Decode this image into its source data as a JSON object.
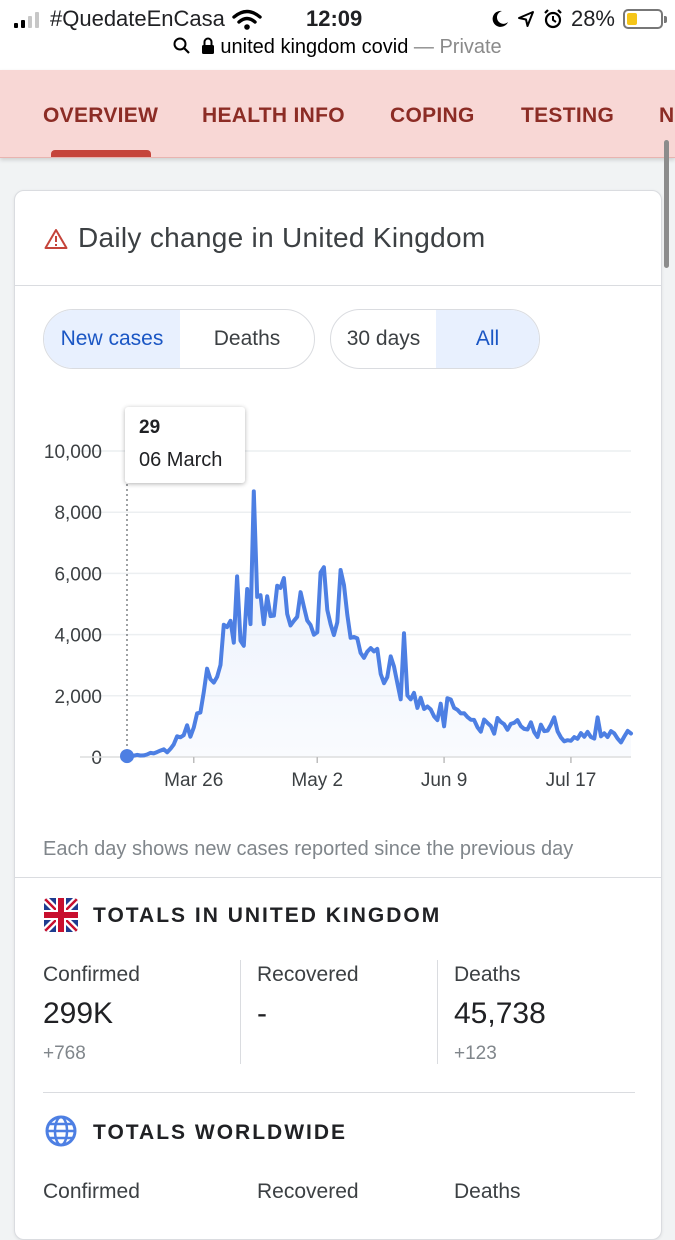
{
  "status_bar": {
    "carrier": "#QuedateEnCasa",
    "time": "12:09",
    "battery": "28%",
    "icons": [
      "signal-icon",
      "wifi-icon",
      "moon-icon",
      "location-icon",
      "alarm-icon",
      "battery-icon"
    ]
  },
  "url_bar": {
    "query": "united kingdom covid",
    "separator": "—",
    "mode": "Private"
  },
  "tabs": [
    {
      "label": "OVERVIEW",
      "active": true
    },
    {
      "label": "HEALTH INFO"
    },
    {
      "label": "COPING"
    },
    {
      "label": "TESTING"
    },
    {
      "label": "N"
    }
  ],
  "card": {
    "title": "Daily change in United Kingdom",
    "metric_toggle": {
      "options": [
        "New cases",
        "Deaths"
      ],
      "selected": "New cases"
    },
    "range_toggle": {
      "options": [
        "30 days",
        "All"
      ],
      "selected": "All"
    },
    "tooltip": {
      "value": "29",
      "date": "06 March"
    },
    "caption": "Each day shows new cases reported since the previous day"
  },
  "chart_data": {
    "type": "line",
    "series": [
      {
        "values": [
          29,
          48,
          43,
          67,
          48,
          52,
          83,
          134,
          117,
          160,
          208,
          251,
          152,
          264,
          407,
          676,
          643,
          714,
          1035,
          665,
          967,
          1427,
          1452,
          2129,
          2885,
          2546,
          2433,
          2619,
          3009,
          4324,
          4244,
          4450,
          3735,
          5903,
          3802,
          3634,
          5491,
          4344,
          8681,
          5233,
          5288,
          4342,
          5252,
          4603,
          4617,
          5599,
          5525,
          5850,
          4676,
          4301,
          4451,
          4583,
          5386,
          4913,
          4463,
          4309,
          3996,
          4076,
          6032,
          6201,
          4806,
          4339,
          3985,
          4406,
          6111,
          5614,
          4649,
          3896,
          3923,
          3877,
          3403,
          3242,
          3446,
          3560,
          3450,
          3534,
          2711,
          2412,
          2615,
          3287,
          2959,
          2405,
          1887,
          4043,
          2013,
          1887,
          2095,
          1604,
          1936,
          1570,
          1650,
          1557,
          1326,
          1205,
          1741,
          1003,
          1921,
          1879,
          1604,
          1541,
          1425,
          1433,
          1305,
          1219,
          1213,
          969,
          827,
          1221,
          1115,
          1014,
          762,
          1275,
          1148,
          1069,
          889,
          1081,
          1119,
          1205,
          1006,
          919,
          900,
          1133,
          813,
          653,
          1054,
          847,
          862,
          1055,
          1296,
          835,
          640,
          512,
          549,
          531,
          650,
          595,
          781,
          659,
          819,
          653,
          600,
          1295,
          678,
          776,
          654,
          847,
          770,
          602,
          478,
          669,
          854,
          768
        ]
      }
    ],
    "x_ticks": [
      "Mar 26",
      "May 2",
      "Jun 9",
      "Jul 17"
    ],
    "y_ticks": [
      "10,000",
      "8,000",
      "6,000",
      "4,000",
      "2,000",
      "0"
    ],
    "ylim": [
      0,
      10000
    ],
    "grid": true,
    "highlighted_index": 0,
    "line_color": "#4d7fe3",
    "fill_color": "#e8effc"
  },
  "totals_uk": {
    "heading": "TOTALS IN UNITED KINGDOM",
    "confirmed_label": "Confirmed",
    "confirmed": "299K",
    "confirmed_delta": "+768",
    "recovered_label": "Recovered",
    "recovered": "-",
    "deaths_label": "Deaths",
    "deaths": "45,738",
    "deaths_delta": "+123"
  },
  "totals_world": {
    "heading": "TOTALS WORLDWIDE",
    "confirmed_label": "Confirmed",
    "recovered_label": "Recovered",
    "deaths_label": "Deaths"
  },
  "colors": {
    "tab_bar": "#f8d7d5",
    "tab_text": "#8c2c25",
    "accent_blue": "#1a56c4",
    "warning": "#c5443a"
  }
}
